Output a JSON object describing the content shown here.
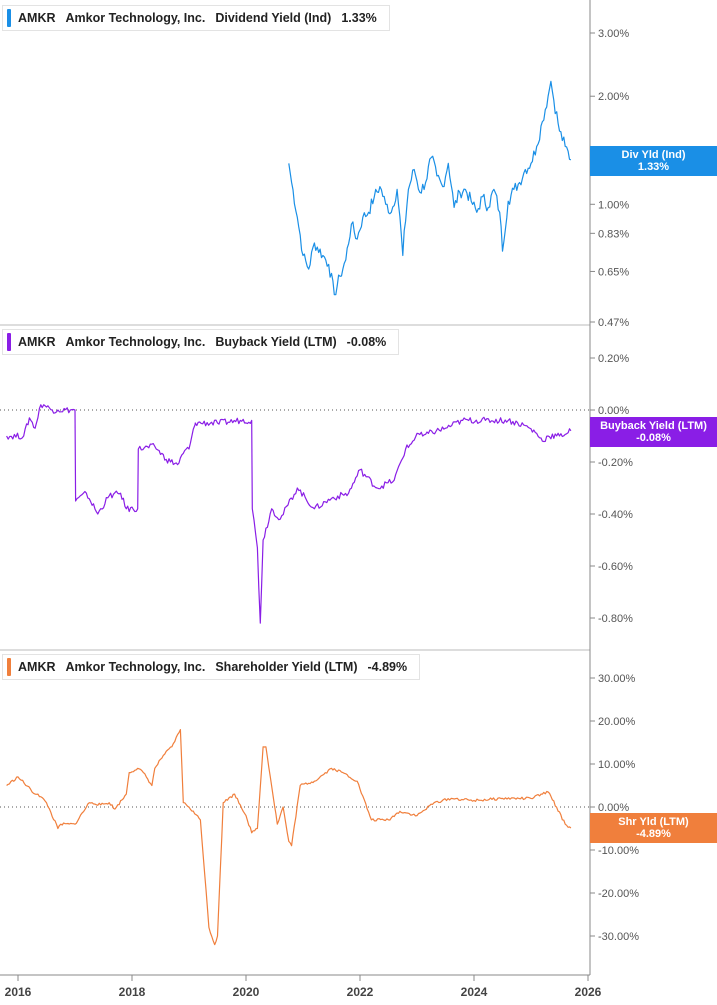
{
  "x_axis": {
    "ticks": [
      "2016",
      "2018",
      "2020",
      "2022",
      "2024",
      "2026"
    ]
  },
  "panels": [
    {
      "id": "div",
      "legend": {
        "ticker": "AMKR",
        "company": "Amkor Technology, Inc.",
        "metric": "Dividend Yield (Ind)",
        "value": "1.33%"
      },
      "flag": {
        "line1": "Div Yld (Ind)",
        "line2": "1.33%"
      },
      "color": "#1a8fe6",
      "tick_labels": [
        "3.00%",
        "2.00%",
        "1.00%",
        "0.83%",
        "0.65%",
        "0.47%"
      ]
    },
    {
      "id": "buyback",
      "legend": {
        "ticker": "AMKR",
        "company": "Amkor Technology, Inc.",
        "metric": "Buyback Yield (LTM)",
        "value": "-0.08%"
      },
      "flag": {
        "line1": "Buyback Yield (LTM)",
        "line2": "-0.08%"
      },
      "color": "#8a1ee6",
      "tick_labels": [
        "0.20%",
        "0.00%",
        "-0.20%",
        "-0.40%",
        "-0.60%",
        "-0.80%"
      ]
    },
    {
      "id": "shr",
      "legend": {
        "ticker": "AMKR",
        "company": "Amkor Technology, Inc.",
        "metric": "Shareholder Yield (LTM)",
        "value": "-4.89%"
      },
      "flag": {
        "line1": "Shr Yld (LTM)",
        "line2": "-4.89%"
      },
      "color": "#f07f3c",
      "tick_labels": [
        "30.00%",
        "20.00%",
        "10.00%",
        "0.00%",
        "-10.00%",
        "-20.00%",
        "-30.00%"
      ]
    }
  ],
  "chart_data": [
    {
      "type": "line",
      "title": "Amkor Technology, Inc. Dividend Yield (Ind)",
      "y_scale": "log",
      "ylim": [
        0.47,
        3.3
      ],
      "y_ticks": [
        3.0,
        2.0,
        1.0,
        0.83,
        0.65,
        0.47
      ],
      "xlim": [
        2015.8,
        2026.2
      ],
      "series": [
        {
          "name": "Dividend Yield (Ind)",
          "x": [
            2020.75,
            2020.8,
            2020.9,
            2021.0,
            2021.1,
            2021.2,
            2021.35,
            2021.45,
            2021.55,
            2021.65,
            2021.75,
            2021.85,
            2021.95,
            2022.05,
            2022.15,
            2022.25,
            2022.35,
            2022.45,
            2022.55,
            2022.65,
            2022.75,
            2022.85,
            2022.95,
            2023.05,
            2023.15,
            2023.25,
            2023.35,
            2023.45,
            2023.55,
            2023.65,
            2023.75,
            2023.85,
            2023.95,
            2024.05,
            2024.15,
            2024.25,
            2024.35,
            2024.45,
            2024.5,
            2024.6,
            2024.7,
            2024.8,
            2024.9,
            2025.0,
            2025.1,
            2025.2,
            2025.3,
            2025.35,
            2025.4,
            2025.5,
            2025.6,
            2025.7
          ],
          "y": [
            1.3,
            1.15,
            0.92,
            0.72,
            0.66,
            0.78,
            0.72,
            0.68,
            0.56,
            0.63,
            0.7,
            0.88,
            0.8,
            0.92,
            0.95,
            1.05,
            1.12,
            1.0,
            0.95,
            1.1,
            0.72,
            1.1,
            1.25,
            1.08,
            1.15,
            1.35,
            1.2,
            1.12,
            1.3,
            0.98,
            1.08,
            1.1,
            1.02,
            0.95,
            1.05,
            0.98,
            1.1,
            0.95,
            0.74,
            1.02,
            1.1,
            1.15,
            1.25,
            1.3,
            1.45,
            1.7,
            2.0,
            2.2,
            1.95,
            1.6,
            1.45,
            1.33
          ]
        }
      ]
    },
    {
      "type": "line",
      "title": "Amkor Technology, Inc. Buyback Yield (LTM)",
      "ylim": [
        -0.85,
        0.25
      ],
      "y_ticks": [
        0.2,
        0.0,
        -0.2,
        -0.4,
        -0.6,
        -0.8
      ],
      "xlim": [
        2015.8,
        2026.2
      ],
      "reference_line": 0.0,
      "series": [
        {
          "name": "Buyback Yield (LTM)",
          "x": [
            2015.8,
            2016.1,
            2016.2,
            2016.3,
            2016.4,
            2016.45,
            2016.6,
            2016.7,
            2017.0,
            2017.01,
            2017.2,
            2017.4,
            2017.6,
            2017.8,
            2017.9,
            2018.1,
            2018.11,
            2018.4,
            2018.6,
            2018.8,
            2018.95,
            2019.0,
            2019.1,
            2019.11,
            2019.5,
            2019.9,
            2020.1,
            2020.11,
            2020.2,
            2020.25,
            2020.3,
            2020.45,
            2020.6,
            2020.9,
            2021.2,
            2021.5,
            2021.8,
            2022.0,
            2022.3,
            2022.6,
            2022.8,
            2022.9,
            2023.0,
            2023.1,
            2023.2,
            2023.5,
            2023.8,
            2024.2,
            2024.6,
            2024.9,
            2025.1,
            2025.2,
            2025.3,
            2025.5,
            2025.7
          ],
          "y": [
            -0.1,
            -0.1,
            -0.03,
            -0.07,
            0.02,
            0.02,
            0.0,
            0.0,
            0.0,
            -0.35,
            -0.32,
            -0.4,
            -0.33,
            -0.32,
            -0.38,
            -0.38,
            -0.15,
            -0.14,
            -0.19,
            -0.21,
            -0.15,
            -0.15,
            -0.06,
            -0.05,
            -0.05,
            -0.04,
            -0.04,
            -0.38,
            -0.53,
            -0.82,
            -0.5,
            -0.38,
            -0.42,
            -0.3,
            -0.38,
            -0.34,
            -0.32,
            -0.23,
            -0.3,
            -0.27,
            -0.15,
            -0.13,
            -0.09,
            -0.1,
            -0.09,
            -0.07,
            -0.04,
            -0.04,
            -0.04,
            -0.06,
            -0.09,
            -0.12,
            -0.1,
            -0.1,
            -0.08
          ]
        }
      ]
    },
    {
      "type": "line",
      "title": "Amkor Technology, Inc. Shareholder Yield (LTM)",
      "ylim": [
        -38,
        35
      ],
      "y_ticks": [
        30,
        20,
        10,
        0,
        -10,
        -20,
        -30
      ],
      "xlim": [
        2015.8,
        2026.2
      ],
      "reference_line": 0.0,
      "series": [
        {
          "name": "Shareholder Yield (LTM)",
          "x": [
            2015.8,
            2016.0,
            2016.3,
            2016.35,
            2016.5,
            2016.7,
            2016.75,
            2017.0,
            2017.25,
            2017.3,
            2017.45,
            2017.6,
            2017.7,
            2017.9,
            2017.95,
            2018.1,
            2018.2,
            2018.35,
            2018.4,
            2018.55,
            2018.7,
            2018.85,
            2018.9,
            2019.0,
            2019.2,
            2019.35,
            2019.45,
            2019.5,
            2019.6,
            2019.8,
            2020.0,
            2020.1,
            2020.2,
            2020.3,
            2020.35,
            2020.55,
            2020.65,
            2020.75,
            2020.8,
            2020.95,
            2021.2,
            2021.5,
            2021.7,
            2021.95,
            2022.2,
            2022.5,
            2022.7,
            2023.0,
            2023.3,
            2023.6,
            2024.0,
            2024.5,
            2025.0,
            2025.2,
            2025.3,
            2025.35,
            2025.6,
            2025.7
          ],
          "y": [
            5,
            7,
            3,
            3,
            1,
            -5,
            -4,
            -4,
            1,
            1,
            0.5,
            1,
            -0.5,
            3,
            8,
            9,
            8,
            5,
            9,
            12,
            14,
            18,
            1,
            0,
            -3,
            -28,
            -32,
            -30,
            1,
            3,
            -2,
            -6,
            -5,
            14,
            14,
            -4,
            0,
            -8,
            -9,
            5,
            6,
            9,
            8,
            6,
            -3,
            -3,
            -1,
            -2,
            1,
            2,
            1.5,
            2,
            2,
            3,
            3.5,
            2.5,
            -4,
            -4.89
          ]
        }
      ]
    }
  ]
}
